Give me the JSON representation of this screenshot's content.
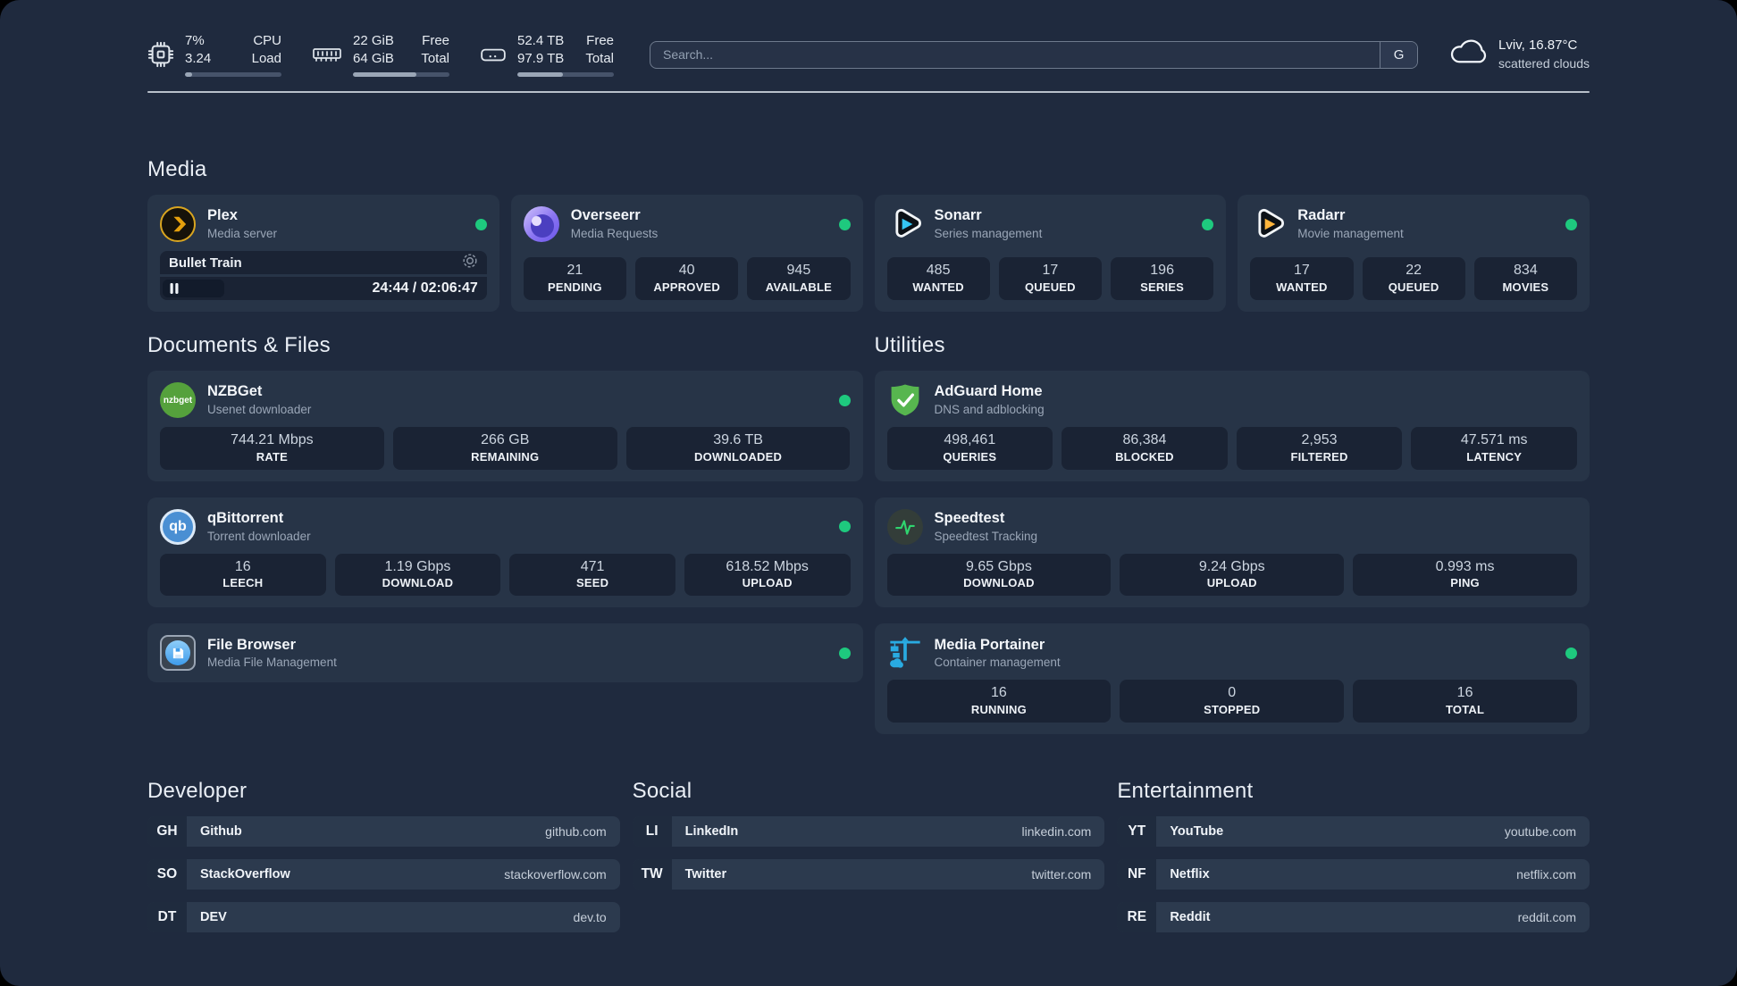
{
  "topbar": {
    "cpu": {
      "values": [
        "7%",
        "3.24"
      ],
      "labels": [
        "CPU",
        "Load"
      ],
      "progress": 7
    },
    "memory": {
      "values": [
        "22 GiB",
        "64 GiB"
      ],
      "labels": [
        "Free",
        "Total"
      ],
      "progress": 66
    },
    "disk": {
      "values": [
        "52.4 TB",
        "97.9 TB"
      ],
      "labels": [
        "Free",
        "Total"
      ],
      "progress": 47
    },
    "search": {
      "placeholder": "Search...",
      "button_label": "G"
    },
    "weather": {
      "location": "Lviv, 16.87°C",
      "condition": "scattered clouds"
    }
  },
  "media": {
    "title": "Media",
    "plex": {
      "name": "Plex",
      "subtitle": "Media server",
      "now_playing": "Bullet Train",
      "elapsed_total": "24:44 / 02:06:47",
      "progress": 19.5
    },
    "overseerr": {
      "name": "Overseerr",
      "subtitle": "Media Requests",
      "stats": [
        {
          "value": "21",
          "label": "PENDING"
        },
        {
          "value": "40",
          "label": "APPROVED"
        },
        {
          "value": "945",
          "label": "AVAILABLE"
        }
      ]
    },
    "sonarr": {
      "name": "Sonarr",
      "subtitle": "Series management",
      "stats": [
        {
          "value": "485",
          "label": "WANTED"
        },
        {
          "value": "17",
          "label": "QUEUED"
        },
        {
          "value": "196",
          "label": "SERIES"
        }
      ]
    },
    "radarr": {
      "name": "Radarr",
      "subtitle": "Movie management",
      "stats": [
        {
          "value": "17",
          "label": "WANTED"
        },
        {
          "value": "22",
          "label": "QUEUED"
        },
        {
          "value": "834",
          "label": "MOVIES"
        }
      ]
    }
  },
  "documents": {
    "title": "Documents & Files",
    "nzbget": {
      "name": "NZBGet",
      "subtitle": "Usenet downloader",
      "icon_text": "nzbget",
      "stats": [
        {
          "value": "744.21 Mbps",
          "label": "RATE"
        },
        {
          "value": "266 GB",
          "label": "REMAINING"
        },
        {
          "value": "39.6 TB",
          "label": "DOWNLOADED"
        }
      ]
    },
    "qbittorrent": {
      "name": "qBittorrent",
      "subtitle": "Torrent downloader",
      "icon_text": "qb",
      "stats": [
        {
          "value": "16",
          "label": "LEECH"
        },
        {
          "value": "1.19 Gbps",
          "label": "DOWNLOAD"
        },
        {
          "value": "471",
          "label": "SEED"
        },
        {
          "value": "618.52 Mbps",
          "label": "UPLOAD"
        }
      ]
    },
    "filebrowser": {
      "name": "File Browser",
      "subtitle": "Media File Management"
    }
  },
  "utilities": {
    "title": "Utilities",
    "adguard": {
      "name": "AdGuard Home",
      "subtitle": "DNS and adblocking",
      "stats": [
        {
          "value": "498,461",
          "label": "QUERIES"
        },
        {
          "value": "86,384",
          "label": "BLOCKED"
        },
        {
          "value": "2,953",
          "label": "FILTERED"
        },
        {
          "value": "47.571 ms",
          "label": "LATENCY"
        }
      ]
    },
    "speedtest": {
      "name": "Speedtest",
      "subtitle": "Speedtest Tracking",
      "stats": [
        {
          "value": "9.65 Gbps",
          "label": "DOWNLOAD"
        },
        {
          "value": "9.24 Gbps",
          "label": "UPLOAD"
        },
        {
          "value": "0.993 ms",
          "label": "PING"
        }
      ]
    },
    "portainer": {
      "name": "Media Portainer",
      "subtitle": "Container management",
      "stats": [
        {
          "value": "16",
          "label": "RUNNING"
        },
        {
          "value": "0",
          "label": "STOPPED"
        },
        {
          "value": "16",
          "label": "TOTAL"
        }
      ]
    }
  },
  "bookmarks": {
    "developer": {
      "title": "Developer",
      "items": [
        {
          "abbr": "GH",
          "name": "Github",
          "url": "github.com"
        },
        {
          "abbr": "SO",
          "name": "StackOverflow",
          "url": "stackoverflow.com"
        },
        {
          "abbr": "DT",
          "name": "DEV",
          "url": "dev.to"
        }
      ]
    },
    "social": {
      "title": "Social",
      "items": [
        {
          "abbr": "LI",
          "name": "LinkedIn",
          "url": "linkedin.com"
        },
        {
          "abbr": "TW",
          "name": "Twitter",
          "url": "twitter.com"
        }
      ]
    },
    "entertainment": {
      "title": "Entertainment",
      "items": [
        {
          "abbr": "YT",
          "name": "YouTube",
          "url": "youtube.com"
        },
        {
          "abbr": "NF",
          "name": "Netflix",
          "url": "netflix.com"
        },
        {
          "abbr": "RE",
          "name": "Reddit",
          "url": "reddit.com"
        }
      ]
    }
  },
  "colors": {
    "status_online": "#1ec97e",
    "plex_amber": "#e5a00d",
    "sonarr_cyan": "#35c5f4",
    "radarr_orange": "#ffb53c",
    "adguard_green": "#57b64f",
    "portainer_blue": "#29abe2",
    "speedtest_green": "#2fd56f"
  }
}
